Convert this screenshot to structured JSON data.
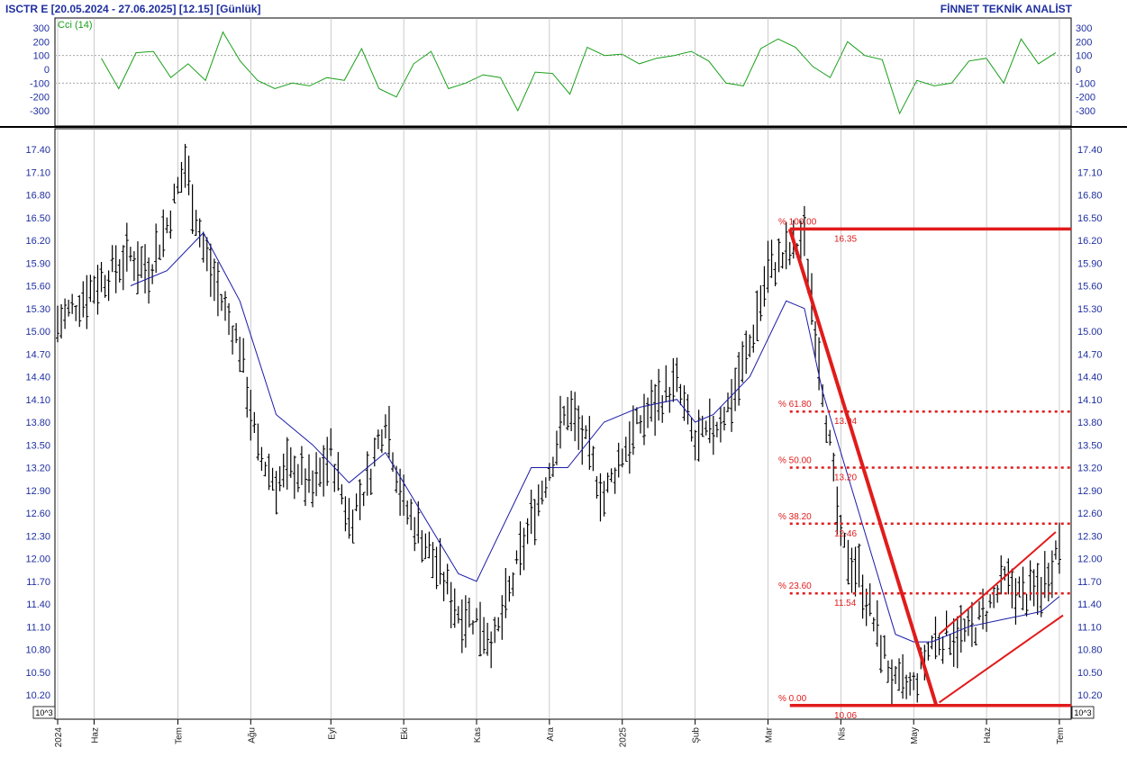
{
  "header": {
    "title": "ISCTR E  [20.05.2024 - 27.06.2025]  [12.15]  [Günlük]",
    "brand": "FİNNET TEKNİK ANALİST"
  },
  "indicator": {
    "label": "Cci (14)"
  },
  "unit_label": "10^3",
  "colors": {
    "text": "#1f2f9f",
    "cci": "#1aa01a",
    "moving_average": "#1a1aa8",
    "fibonacci": "#e11b1b",
    "bars": "#000000"
  },
  "chart_data": [
    {
      "type": "line",
      "name": "cci-panel",
      "title": "Cci (14)",
      "ylim": [
        -400,
        350
      ],
      "yticks": [
        300,
        200,
        100,
        0,
        -100,
        -200,
        -300
      ],
      "gridlines_dotted": [
        100,
        -100
      ],
      "x": [
        0,
        5,
        10,
        15,
        20,
        25,
        30,
        35,
        40,
        45,
        50,
        55,
        60,
        65,
        70,
        75,
        80,
        85,
        90,
        95,
        100,
        105,
        110,
        115,
        120,
        125,
        130,
        135,
        140,
        145,
        150,
        155,
        160,
        165,
        170,
        175,
        180,
        185,
        190,
        195,
        200,
        205,
        210,
        215,
        220,
        225,
        230,
        235,
        240,
        245,
        250,
        255,
        260,
        265,
        270,
        275
      ],
      "values": [
        80,
        -140,
        120,
        130,
        -60,
        40,
        -80,
        270,
        60,
        -80,
        -140,
        -100,
        -120,
        -60,
        -80,
        150,
        -140,
        -200,
        40,
        130,
        -140,
        -100,
        -40,
        -60,
        -300,
        -20,
        -30,
        -180,
        160,
        100,
        110,
        40,
        80,
        100,
        130,
        60,
        -100,
        -120,
        150,
        220,
        160,
        20,
        -60,
        200,
        100,
        70,
        -320,
        -80,
        -120,
        -100,
        60,
        80,
        -100,
        220,
        40,
        120
      ]
    },
    {
      "type": "bar",
      "name": "ISCTR E daily OHLC",
      "ylim": [
        10.0,
        17.6
      ],
      "yticks": [
        17.4,
        17.1,
        16.8,
        16.5,
        16.2,
        15.9,
        15.6,
        15.3,
        15.0,
        14.7,
        14.4,
        14.1,
        13.8,
        13.5,
        13.2,
        12.9,
        12.6,
        12.3,
        12.0,
        11.7,
        11.4,
        11.1,
        10.8,
        10.5,
        10.2
      ],
      "ytick_labels": [
        "17.40",
        "17.10",
        "16.80",
        "16.50",
        "16.20",
        "15.90",
        "15.60",
        "15.30",
        "15.00",
        "14.70",
        "14.40",
        "14.10",
        "13.80",
        "13.50",
        "13.20",
        "12.90",
        "12.60",
        "12.30",
        "12.00",
        "11.70",
        "11.40",
        "11.10",
        "10.80",
        "10.50",
        "10.20"
      ],
      "x_labels": [
        "2024",
        "Haz",
        "Tem",
        "Ağu",
        "Eyl",
        "Eki",
        "Kas",
        "Ara",
        "2025",
        "Şub",
        "Mar",
        "Nis",
        "May",
        "Haz",
        "Tem"
      ],
      "x_label_bars": [
        0,
        10,
        33,
        53,
        75,
        95,
        115,
        135,
        155,
        175,
        195,
        215,
        235,
        255,
        275
      ],
      "trend_points_x": [
        0,
        10,
        20,
        25,
        30,
        35,
        40,
        45,
        50,
        55,
        60,
        65,
        70,
        75,
        80,
        85,
        90,
        95,
        100,
        105,
        110,
        115,
        120,
        125,
        130,
        135,
        140,
        145,
        150,
        155,
        160,
        165,
        170,
        175,
        180,
        185,
        190,
        195,
        200,
        205,
        210,
        215,
        220,
        225,
        230,
        235,
        240,
        245,
        250,
        255,
        260,
        265,
        270,
        275
      ],
      "trend_points_close": [
        15.1,
        15.6,
        16.0,
        15.8,
        16.4,
        17.2,
        16.1,
        15.4,
        14.8,
        13.4,
        13.0,
        13.2,
        12.9,
        13.4,
        12.5,
        13.0,
        13.9,
        12.7,
        12.3,
        11.8,
        11.3,
        11.2,
        10.9,
        11.7,
        12.5,
        13.2,
        14.0,
        13.5,
        12.8,
        13.4,
        13.8,
        14.1,
        14.3,
        13.5,
        13.7,
        14.1,
        14.8,
        15.8,
        16.0,
        16.2,
        14.3,
        12.2,
        11.8,
        11.0,
        10.3,
        10.3,
        10.9,
        11.0,
        11.0,
        11.3,
        11.7,
        11.5,
        11.6,
        12.2
      ],
      "moving_average_x": [
        20,
        30,
        40,
        50,
        60,
        70,
        80,
        90,
        100,
        110,
        115,
        120,
        130,
        140,
        150,
        160,
        170,
        175,
        180,
        190,
        200,
        205,
        210,
        220,
        230,
        235,
        240,
        250,
        260,
        270,
        275
      ],
      "moving_average": [
        15.6,
        15.8,
        16.3,
        15.4,
        13.9,
        13.5,
        13.0,
        13.4,
        12.6,
        11.8,
        11.7,
        12.2,
        13.2,
        13.2,
        13.8,
        14.0,
        14.1,
        13.8,
        13.9,
        14.4,
        15.4,
        15.3,
        14.2,
        12.6,
        11.0,
        10.9,
        10.9,
        11.1,
        11.2,
        11.3,
        11.5
      ],
      "fibonacci": {
        "levels": [
          {
            "pct_label": "% 100.00",
            "value_label": "16.35",
            "value": 16.35
          },
          {
            "pct_label": "% 61.80",
            "value_label": "13.94",
            "value": 13.94
          },
          {
            "pct_label": "% 50.00",
            "value_label": "13.20",
            "value": 13.2
          },
          {
            "pct_label": "% 38.20",
            "value_label": "12.46",
            "value": 12.46
          },
          {
            "pct_label": "% 23.60",
            "value_label": "11.54",
            "value": 11.54
          },
          {
            "pct_label": "% 0.00",
            "value_label": "10.06",
            "value": 10.06
          }
        ],
        "swing_high": {
          "x": 201,
          "value": 16.35
        },
        "swing_low": {
          "x": 237,
          "value": 10.06
        }
      },
      "channel": {
        "upper": {
          "x": [
            242,
            274
          ],
          "values": [
            11.0,
            12.35
          ]
        },
        "lower": {
          "x": [
            242,
            276
          ],
          "values": [
            10.1,
            11.25
          ]
        }
      }
    }
  ]
}
